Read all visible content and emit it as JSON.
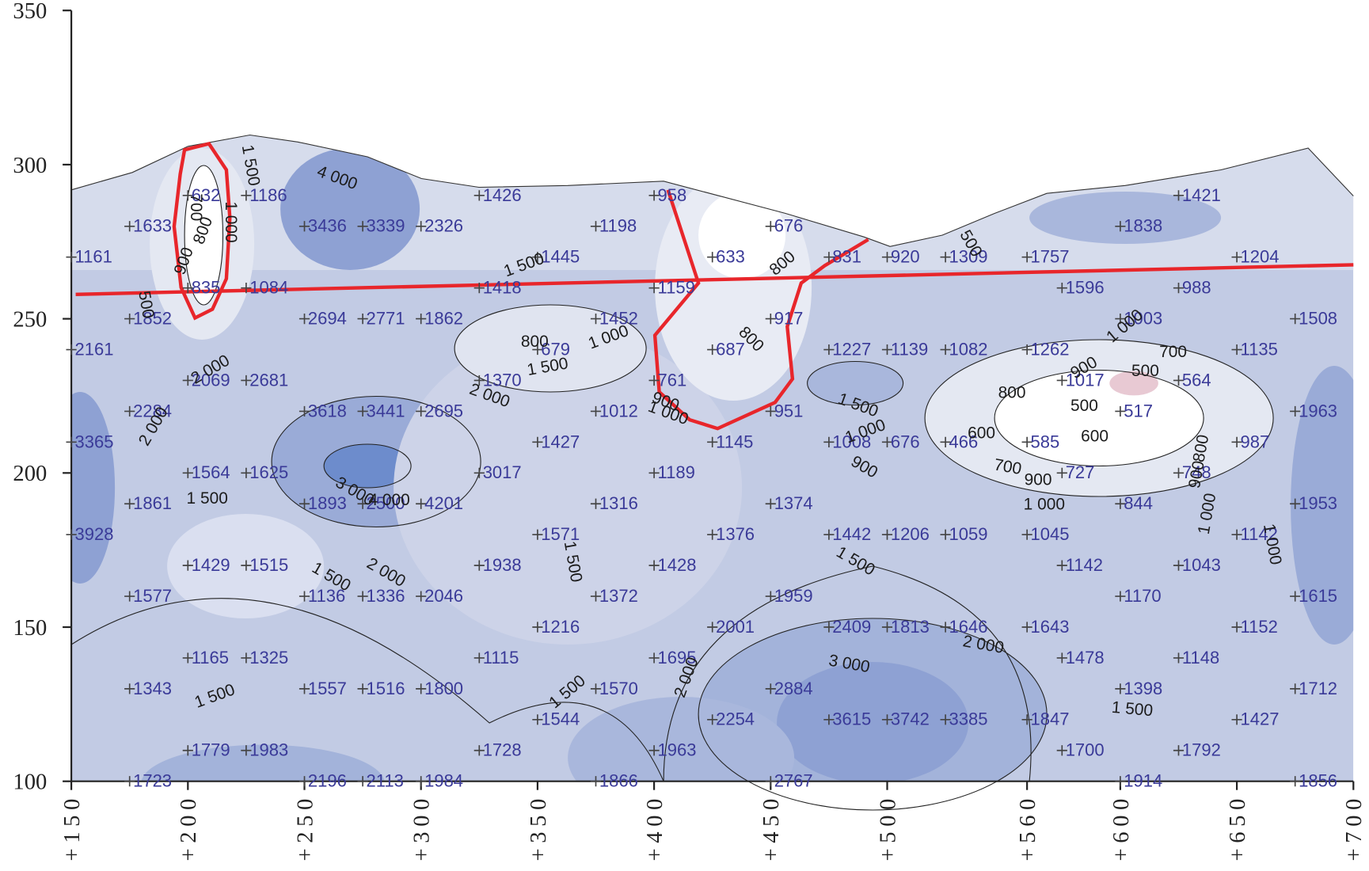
{
  "chart_data": {
    "type": "contour",
    "xlim": [
      150,
      700
    ],
    "ylim": [
      100,
      350
    ],
    "xticks": [
      {
        "value": 150,
        "label": "+150"
      },
      {
        "value": 200,
        "label": "+200"
      },
      {
        "value": 250,
        "label": "+250"
      },
      {
        "value": 300,
        "label": "+300"
      },
      {
        "value": 350,
        "label": "+350"
      },
      {
        "value": 400,
        "label": "+400"
      },
      {
        "value": 450,
        "label": "+450"
      },
      {
        "value": 500,
        "label": "+500"
      },
      {
        "value": 560,
        "label": "+560"
      },
      {
        "value": 600,
        "label": "+600"
      },
      {
        "value": 650,
        "label": "+650"
      },
      {
        "value": 700,
        "label": "+700"
      }
    ],
    "yticks": [
      100,
      150,
      200,
      250,
      300,
      350
    ],
    "points": [
      [
        200,
        290,
        632
      ],
      [
        225,
        290,
        1186
      ],
      [
        325,
        290,
        1426
      ],
      [
        400,
        290,
        958
      ],
      [
        625,
        290,
        1421
      ],
      [
        175,
        280,
        1633
      ],
      [
        250,
        280,
        3436
      ],
      [
        275,
        280,
        3339
      ],
      [
        300,
        280,
        2326
      ],
      [
        375,
        280,
        1198
      ],
      [
        450,
        280,
        676
      ],
      [
        600,
        280,
        1838
      ],
      [
        150,
        270,
        1161
      ],
      [
        350,
        270,
        1445
      ],
      [
        425,
        270,
        633
      ],
      [
        475,
        270,
        831
      ],
      [
        500,
        270,
        920
      ],
      [
        525,
        270,
        1309
      ],
      [
        560,
        270,
        1757
      ],
      [
        650,
        270,
        1204
      ],
      [
        200,
        260,
        835
      ],
      [
        225,
        260,
        1084
      ],
      [
        325,
        260,
        1418
      ],
      [
        400,
        260,
        1159
      ],
      [
        575,
        260,
        1596
      ],
      [
        625,
        260,
        988
      ],
      [
        175,
        250,
        1852
      ],
      [
        250,
        250,
        2694
      ],
      [
        275,
        250,
        2771
      ],
      [
        300,
        250,
        1862
      ],
      [
        375,
        250,
        1452
      ],
      [
        450,
        250,
        917
      ],
      [
        600,
        250,
        1003
      ],
      [
        675,
        250,
        1508
      ],
      [
        150,
        240,
        2161
      ],
      [
        350,
        240,
        679
      ],
      [
        425,
        240,
        687
      ],
      [
        475,
        240,
        1227
      ],
      [
        500,
        240,
        1139
      ],
      [
        525,
        240,
        1082
      ],
      [
        560,
        240,
        1262
      ],
      [
        650,
        240,
        1135
      ],
      [
        200,
        230,
        2069
      ],
      [
        225,
        230,
        2681
      ],
      [
        325,
        230,
        1370
      ],
      [
        400,
        230,
        761
      ],
      [
        575,
        230,
        1017
      ],
      [
        625,
        230,
        564
      ],
      [
        175,
        220,
        2284
      ],
      [
        250,
        220,
        3618
      ],
      [
        275,
        220,
        3441
      ],
      [
        300,
        220,
        2695
      ],
      [
        375,
        220,
        1012
      ],
      [
        450,
        220,
        951
      ],
      [
        600,
        220,
        517
      ],
      [
        675,
        220,
        1963
      ],
      [
        150,
        210,
        3365
      ],
      [
        350,
        210,
        1427
      ],
      [
        425,
        210,
        1145
      ],
      [
        475,
        210,
        1008
      ],
      [
        500,
        210,
        676
      ],
      [
        525,
        210,
        466
      ],
      [
        560,
        210,
        585
      ],
      [
        650,
        210,
        987
      ],
      [
        200,
        200,
        1564
      ],
      [
        225,
        200,
        1625
      ],
      [
        325,
        200,
        3017
      ],
      [
        400,
        200,
        1189
      ],
      [
        575,
        200,
        727
      ],
      [
        625,
        200,
        748
      ],
      [
        175,
        190,
        1861
      ],
      [
        250,
        190,
        1893
      ],
      [
        275,
        190,
        2500
      ],
      [
        300,
        190,
        4201
      ],
      [
        375,
        190,
        1316
      ],
      [
        450,
        190,
        1374
      ],
      [
        600,
        190,
        844
      ],
      [
        675,
        190,
        1953
      ],
      [
        150,
        180,
        3928
      ],
      [
        350,
        180,
        1571
      ],
      [
        425,
        180,
        1376
      ],
      [
        475,
        180,
        1442
      ],
      [
        500,
        180,
        1206
      ],
      [
        525,
        180,
        1059
      ],
      [
        560,
        180,
        1045
      ],
      [
        650,
        180,
        1142
      ],
      [
        200,
        170,
        1429
      ],
      [
        225,
        170,
        1515
      ],
      [
        325,
        170,
        1938
      ],
      [
        400,
        170,
        1428
      ],
      [
        575,
        170,
        1142
      ],
      [
        625,
        170,
        1043
      ],
      [
        175,
        160,
        1577
      ],
      [
        250,
        160,
        1136
      ],
      [
        275,
        160,
        1336
      ],
      [
        300,
        160,
        2046
      ],
      [
        375,
        160,
        1372
      ],
      [
        450,
        160,
        1959
      ],
      [
        600,
        160,
        1170
      ],
      [
        675,
        160,
        1615
      ],
      [
        350,
        150,
        1216
      ],
      [
        425,
        150,
        2001
      ],
      [
        475,
        150,
        2409
      ],
      [
        500,
        150,
        1813
      ],
      [
        525,
        150,
        1646
      ],
      [
        560,
        150,
        1643
      ],
      [
        650,
        150,
        1152
      ],
      [
        200,
        140,
        1165
      ],
      [
        225,
        140,
        1325
      ],
      [
        325,
        140,
        1115
      ],
      [
        400,
        140,
        1695
      ],
      [
        575,
        140,
        1478
      ],
      [
        625,
        140,
        1148
      ],
      [
        175,
        130,
        1343
      ],
      [
        250,
        130,
        1557
      ],
      [
        275,
        130,
        1516
      ],
      [
        300,
        130,
        1800
      ],
      [
        375,
        130,
        1570
      ],
      [
        450,
        130,
        2884
      ],
      [
        600,
        130,
        1398
      ],
      [
        675,
        130,
        1712
      ],
      [
        350,
        120,
        1544
      ],
      [
        425,
        120,
        2254
      ],
      [
        475,
        120,
        3615
      ],
      [
        500,
        120,
        3742
      ],
      [
        525,
        120,
        3385
      ],
      [
        560,
        120,
        1847
      ],
      [
        650,
        120,
        1427
      ],
      [
        200,
        110,
        1779
      ],
      [
        225,
        110,
        1983
      ],
      [
        325,
        110,
        1728
      ],
      [
        400,
        110,
        1963
      ],
      [
        575,
        110,
        1700
      ],
      [
        625,
        110,
        1792
      ],
      [
        175,
        100,
        1723
      ],
      [
        250,
        100,
        2196
      ],
      [
        275,
        100,
        2113
      ],
      [
        300,
        100,
        1984
      ],
      [
        375,
        100,
        1866
      ],
      [
        450,
        100,
        2767
      ],
      [
        600,
        100,
        1914
      ],
      [
        675,
        100,
        1856
      ]
    ],
    "contour_labels": [
      700,
      800,
      900,
      {
        "value": 1000,
        "label": "1 000"
      },
      {
        "value": 1500,
        "label": "1 500"
      },
      {
        "value": 4000,
        "label": "4 000"
      },
      500,
      {
        "value": 2000,
        "label": "2 000"
      },
      {
        "value": 2000,
        "label": "2 000"
      },
      {
        "value": 1500,
        "label": "1 500"
      },
      800,
      {
        "value": 1000,
        "label": "1 000"
      },
      {
        "value": 1500,
        "label": "1 500"
      },
      {
        "value": 2000,
        "label": "2 000"
      },
      900,
      {
        "value": 1000,
        "label": "1 000"
      },
      800,
      800,
      {
        "value": 1500,
        "label": "1 500"
      },
      {
        "value": 1000,
        "label": "1 000"
      },
      900,
      600,
      700,
      500,
      500,
      800,
      900,
      {
        "value": 1000,
        "label": "1 000"
      },
      600,
      700,
      900,
      {
        "value": 1000,
        "label": "1 000"
      },
      900,
      800,
      {
        "value": 1000,
        "label": "1 000"
      },
      {
        "value": 1000,
        "label": "1 000"
      },
      500,
      {
        "value": 1500,
        "label": "1 500"
      },
      {
        "value": 3000,
        "label": "3 000"
      },
      {
        "value": 4000,
        "label": "4 000"
      },
      {
        "value": 1500,
        "label": "1 500"
      },
      {
        "value": 2000,
        "label": "2 000"
      },
      {
        "value": 1500,
        "label": "1 500"
      },
      {
        "value": 1500,
        "label": "1 500"
      },
      {
        "value": 2000,
        "label": "2 000"
      },
      {
        "value": 3000,
        "label": "3 000"
      },
      {
        "value": 2000,
        "label": "2 000"
      },
      {
        "value": 1500,
        "label": "1 500"
      },
      {
        "value": 1500,
        "label": "1 500"
      },
      {
        "value": 1500,
        "label": "1 500"
      }
    ]
  }
}
